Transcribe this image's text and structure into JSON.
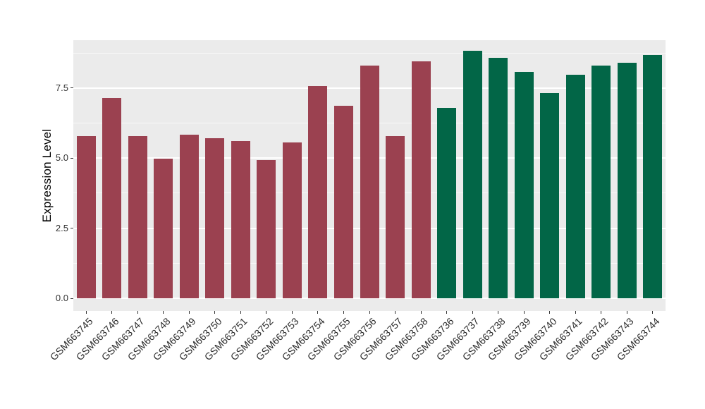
{
  "chart_data": {
    "type": "bar",
    "title": "",
    "xlabel": "",
    "ylabel": "Expression Level",
    "categories": [
      "GSM663745",
      "GSM663746",
      "GSM663747",
      "GSM663748",
      "GSM663749",
      "GSM663750",
      "GSM663751",
      "GSM663752",
      "GSM663753",
      "GSM663754",
      "GSM663755",
      "GSM663756",
      "GSM663757",
      "GSM663758",
      "GSM663736",
      "GSM663737",
      "GSM663738",
      "GSM663739",
      "GSM663740",
      "GSM663741",
      "GSM663742",
      "GSM663743",
      "GSM663744"
    ],
    "values": [
      5.8,
      7.15,
      5.78,
      4.98,
      5.85,
      5.72,
      5.6,
      4.93,
      5.55,
      7.58,
      6.88,
      8.3,
      5.8,
      8.45,
      6.8,
      8.82,
      8.58,
      8.07,
      7.33,
      7.98,
      8.3,
      8.4,
      8.67
    ],
    "bar_groups": [
      "red",
      "red",
      "red",
      "red",
      "red",
      "red",
      "red",
      "red",
      "red",
      "red",
      "red",
      "red",
      "red",
      "red",
      "green",
      "green",
      "green",
      "green",
      "green",
      "green",
      "green",
      "green",
      "green"
    ],
    "group_colors": {
      "red": "#9B4150",
      "green": "#026647"
    },
    "ytick_values": [
      0.0,
      2.5,
      5.0,
      7.5
    ],
    "ytick_labels": [
      "0.0",
      "2.5",
      "5.0",
      "7.5"
    ],
    "minor_tick_values": [
      1.25,
      3.75,
      6.25,
      8.75
    ],
    "ylim": [
      -0.45,
      9.21
    ],
    "grid": true,
    "legend_position": "none",
    "panel_background": "#EBEBEB",
    "grid_color": "#FFFFFF",
    "tick_color": "#333333"
  }
}
